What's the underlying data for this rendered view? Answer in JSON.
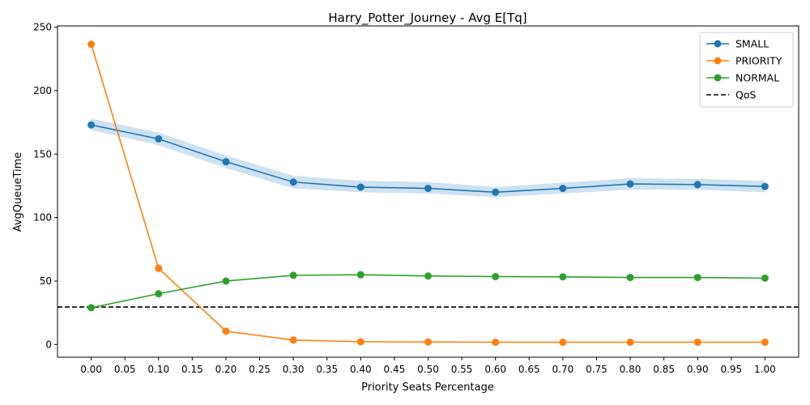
{
  "chart_data": {
    "type": "line",
    "title": "Harry_Potter_Journey - Avg E[Tq]",
    "xlabel": "Priority Seats Percentage",
    "ylabel": "AvgQueueTime",
    "x": [
      0.0,
      0.1,
      0.2,
      0.3,
      0.4,
      0.5,
      0.6,
      0.7,
      0.8,
      0.9,
      1.0
    ],
    "xticks": [
      "0.00",
      "0.05",
      "0.10",
      "0.15",
      "0.20",
      "0.25",
      "0.30",
      "0.35",
      "0.40",
      "0.45",
      "0.50",
      "0.55",
      "0.60",
      "0.65",
      "0.70",
      "0.75",
      "0.80",
      "0.85",
      "0.90",
      "0.95",
      "1.00"
    ],
    "yticks": [
      "0",
      "50",
      "100",
      "150",
      "200",
      "250"
    ],
    "xlim": [
      -0.05,
      1.05
    ],
    "ylim": [
      -10,
      251
    ],
    "series": [
      {
        "name": "SMALL",
        "color": "#1f77b4",
        "values": [
          173,
          162,
          144,
          128,
          124,
          123,
          120,
          123,
          126.5,
          126,
          124.5
        ],
        "band": {
          "color": "#a6c8e4",
          "lower": [
            169,
            157,
            139,
            123,
            120,
            119,
            116,
            119,
            122,
            122,
            120
          ],
          "upper": [
            178,
            167,
            149,
            133,
            129,
            128,
            124,
            127.5,
            131,
            130.5,
            129
          ]
        }
      },
      {
        "name": "PRIORITY",
        "color": "#ff7f0e",
        "values": [
          236.5,
          60,
          10.5,
          3.5,
          2.2,
          2,
          1.8,
          1.8,
          1.8,
          1.8,
          1.8
        ]
      },
      {
        "name": "NORMAL",
        "color": "#2ca02c",
        "values": [
          29,
          40,
          50,
          54.5,
          55,
          54,
          53.5,
          53.3,
          52.8,
          52.8,
          52.3
        ]
      }
    ],
    "reference_lines": [
      {
        "name": "QoS",
        "y": 29.5,
        "color": "#000000",
        "style": "dashed"
      }
    ],
    "legend": {
      "position": "top-right",
      "entries": [
        "SMALL",
        "PRIORITY",
        "NORMAL",
        "QoS"
      ]
    },
    "grid": false
  }
}
